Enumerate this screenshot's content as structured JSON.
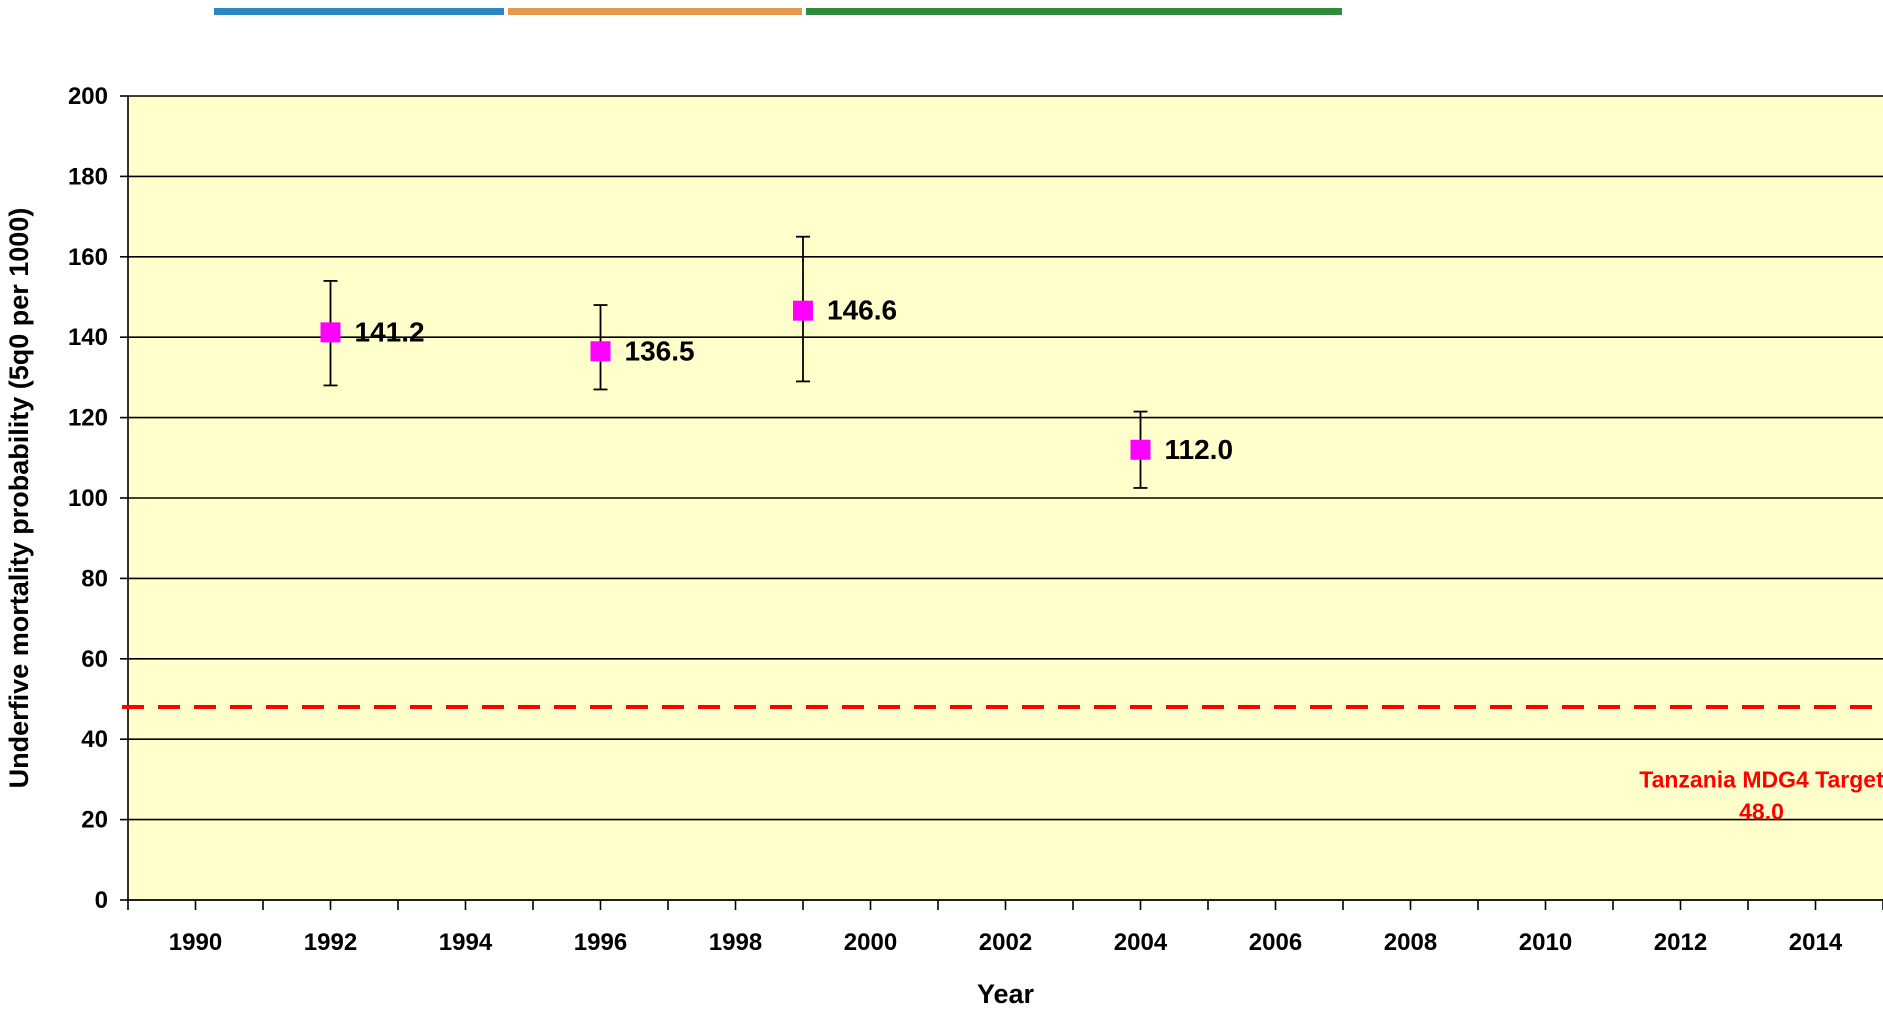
{
  "colors": {
    "plot_background": "#FFFFCC",
    "gridline": "#000000",
    "marker": "#FF00FF",
    "target": "#FF0000",
    "banner": [
      "#2E86C1",
      "#E59850",
      "#2E8B3C"
    ]
  },
  "chart_data": {
    "type": "scatter",
    "title": "",
    "xlabel": "Year",
    "ylabel": "Underfive mortality probability (5q0 per 1000)",
    "xlim": [
      1989,
      2015
    ],
    "ylim": [
      0,
      200
    ],
    "x_ticks": [
      1990,
      1992,
      1994,
      1996,
      1998,
      2000,
      2002,
      2004,
      2006,
      2008,
      2010,
      2012,
      2014
    ],
    "y_ticks": [
      0,
      20,
      40,
      60,
      80,
      100,
      120,
      140,
      160,
      180,
      200
    ],
    "grid": "horizontal",
    "series": [
      {
        "points": [
          {
            "x": 1992.0,
            "y": 141.2,
            "low": 128.0,
            "high": 154.0,
            "label": "141.2"
          },
          {
            "x": 1996.0,
            "y": 136.5,
            "low": 127.0,
            "high": 148.0,
            "label": "136.5"
          },
          {
            "x": 1999.0,
            "y": 146.6,
            "low": 129.0,
            "high": 165.0,
            "label": "146.6"
          },
          {
            "x": 2004.0,
            "y": 112.0,
            "low": 102.5,
            "high": 121.5,
            "label": "112.0"
          }
        ]
      }
    ],
    "reference_line": {
      "y": 48.0,
      "style": "dashed",
      "label_line1": "Tanzania MDG4 Target",
      "label_line2": "48.0"
    }
  }
}
